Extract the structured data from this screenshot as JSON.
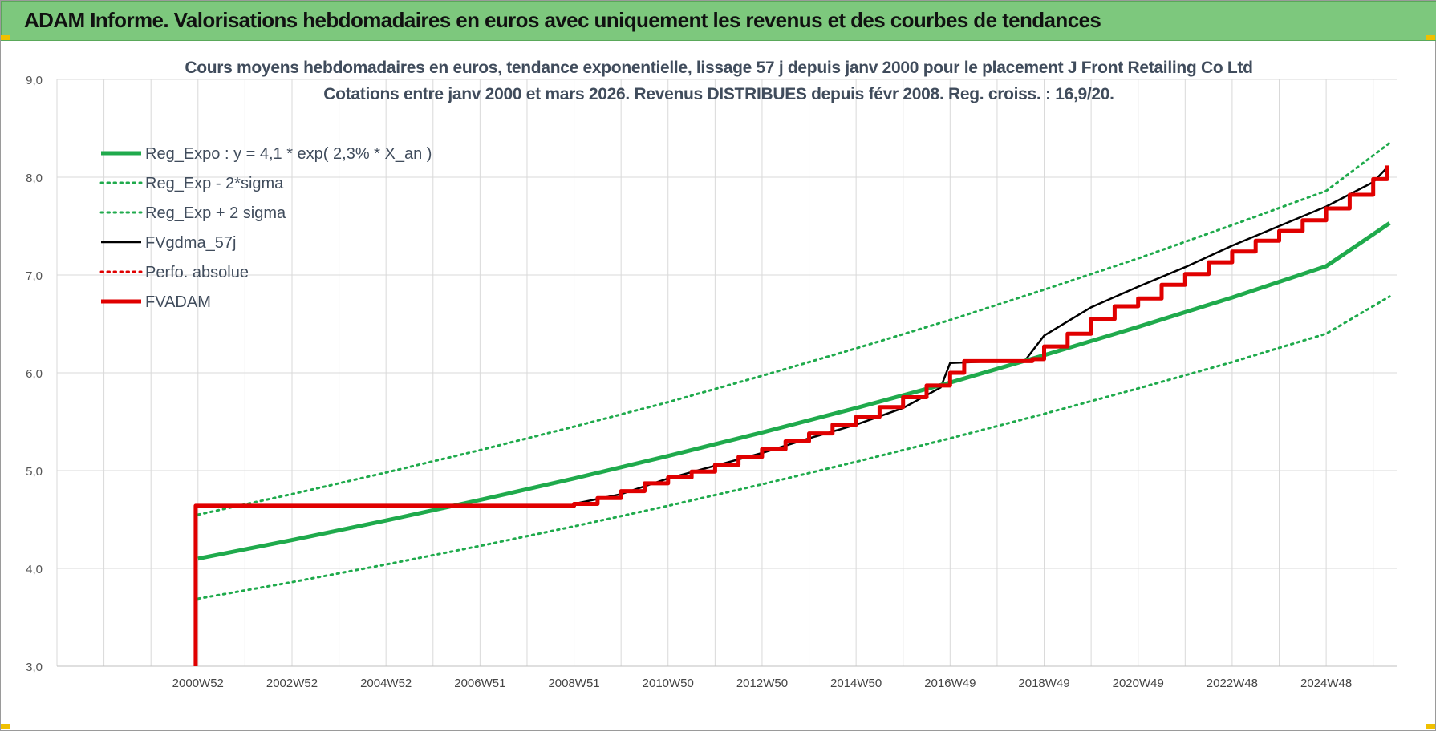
{
  "banner": {
    "title": "ADAM Informe. Valorisations hebdomadaires en euros avec uniquement les revenus et des courbes de tendances"
  },
  "colors": {
    "banner_bg": "#7dc87d",
    "reg_green": "#1faa4c",
    "fvadam_red": "#e00000",
    "fvgdma_black": "#000000",
    "grid": "#d9d9d9",
    "title_text": "#404c5c"
  },
  "chart_data": {
    "type": "line",
    "title": "Cours moyens hebdomadaires en euros, tendance exponentielle, lissage 57 j depuis janv 2000 pour le placement J Front Retailing Co Ltd",
    "subtitle": "Cotations entre janv 2000 et mars 2026. Revenus DISTRIBUES depuis févr 2008. Reg. croiss. : 16,9/20.",
    "xlabel": "",
    "ylabel": "",
    "ylim": [
      3.0,
      9.0
    ],
    "xlim": [
      1998.0,
      2026.5
    ],
    "yticks": [
      "3,0",
      "4,0",
      "5,0",
      "6,0",
      "7,0",
      "8,0",
      "9,0"
    ],
    "xticks": [
      {
        "x": 2001.0,
        "label": "2000W52"
      },
      {
        "x": 2003.0,
        "label": "2002W52"
      },
      {
        "x": 2005.0,
        "label": "2004W52"
      },
      {
        "x": 2007.0,
        "label": "2006W51"
      },
      {
        "x": 2009.0,
        "label": "2008W51"
      },
      {
        "x": 2011.0,
        "label": "2010W50"
      },
      {
        "x": 2013.0,
        "label": "2012W50"
      },
      {
        "x": 2015.0,
        "label": "2014W50"
      },
      {
        "x": 2017.0,
        "label": "2016W49"
      },
      {
        "x": 2019.0,
        "label": "2018W49"
      },
      {
        "x": 2021.0,
        "label": "2020W49"
      },
      {
        "x": 2023.0,
        "label": "2022W48"
      },
      {
        "x": 2025.0,
        "label": "2024W48"
      }
    ],
    "grid": true,
    "legend_position": "top-left",
    "series": [
      {
        "name": "Reg_Expo : y = 4,1 * exp( 2,3% *  X_an )",
        "style": "solid-thick",
        "color": "#1faa4c",
        "x": [
          2001.0,
          2003.0,
          2005.0,
          2007.0,
          2009.0,
          2011.0,
          2013.0,
          2015.0,
          2017.0,
          2019.0,
          2021.0,
          2023.0,
          2025.0,
          2026.35
        ],
        "y": [
          4.1,
          4.29,
          4.49,
          4.7,
          4.92,
          5.15,
          5.39,
          5.64,
          5.9,
          6.18,
          6.47,
          6.77,
          7.09,
          7.53
        ]
      },
      {
        "name": "Reg_Exp - 2*sigma",
        "style": "dotted",
        "color": "#1faa4c",
        "x": [
          2001.0,
          2003.0,
          2005.0,
          2007.0,
          2009.0,
          2011.0,
          2013.0,
          2015.0,
          2017.0,
          2019.0,
          2021.0,
          2023.0,
          2025.0,
          2026.35
        ],
        "y": [
          3.69,
          3.86,
          4.04,
          4.23,
          4.43,
          4.64,
          4.86,
          5.09,
          5.33,
          5.58,
          5.84,
          6.11,
          6.4,
          6.78
        ]
      },
      {
        "name": "Reg_Exp + 2 sigma",
        "style": "dotted",
        "color": "#1faa4c",
        "x": [
          2001.0,
          2003.0,
          2005.0,
          2007.0,
          2009.0,
          2011.0,
          2013.0,
          2015.0,
          2017.0,
          2019.0,
          2021.0,
          2023.0,
          2025.0,
          2026.35
        ],
        "y": [
          4.55,
          4.76,
          4.98,
          5.21,
          5.45,
          5.7,
          5.97,
          6.25,
          6.54,
          6.85,
          7.17,
          7.51,
          7.86,
          8.35
        ]
      },
      {
        "name": "FVgdma_57j",
        "style": "solid-thin",
        "color": "#000000",
        "x": [
          2009.0,
          2010.0,
          2011.0,
          2012.0,
          2013.0,
          2014.0,
          2015.0,
          2016.0,
          2016.8,
          2017.0,
          2018.6,
          2019.0,
          2020.0,
          2021.0,
          2022.0,
          2023.0,
          2024.0,
          2025.0,
          2026.0,
          2026.3
        ],
        "y": [
          4.66,
          4.76,
          4.92,
          5.05,
          5.18,
          5.33,
          5.47,
          5.64,
          5.85,
          6.1,
          6.13,
          6.38,
          6.67,
          6.88,
          7.08,
          7.3,
          7.5,
          7.7,
          7.95,
          8.1
        ]
      },
      {
        "name": "Perfo. absolue",
        "style": "dotted",
        "color": "#e00000",
        "x": [],
        "y": []
      },
      {
        "name": "FVADAM",
        "style": "solid-thick",
        "color": "#e00000",
        "steps": [
          [
            2000.95,
            3.0
          ],
          [
            2000.95,
            4.64
          ],
          [
            2008.9,
            4.64
          ],
          [
            2009.0,
            4.66
          ],
          [
            2009.5,
            4.72
          ],
          [
            2010.0,
            4.79
          ],
          [
            2010.5,
            4.87
          ],
          [
            2011.0,
            4.93
          ],
          [
            2011.5,
            4.99
          ],
          [
            2012.0,
            5.06
          ],
          [
            2012.5,
            5.14
          ],
          [
            2013.0,
            5.22
          ],
          [
            2013.5,
            5.3
          ],
          [
            2014.0,
            5.38
          ],
          [
            2014.5,
            5.47
          ],
          [
            2015.0,
            5.55
          ],
          [
            2015.5,
            5.65
          ],
          [
            2016.0,
            5.75
          ],
          [
            2016.5,
            5.87
          ],
          [
            2017.0,
            6.0
          ],
          [
            2017.3,
            6.12
          ],
          [
            2018.75,
            6.14
          ],
          [
            2019.0,
            6.27
          ],
          [
            2019.5,
            6.4
          ],
          [
            2020.0,
            6.55
          ],
          [
            2020.5,
            6.68
          ],
          [
            2021.0,
            6.76
          ],
          [
            2021.5,
            6.9
          ],
          [
            2022.0,
            7.01
          ],
          [
            2022.5,
            7.13
          ],
          [
            2023.0,
            7.24
          ],
          [
            2023.5,
            7.35
          ],
          [
            2024.0,
            7.45
          ],
          [
            2024.5,
            7.56
          ],
          [
            2025.0,
            7.68
          ],
          [
            2025.5,
            7.82
          ],
          [
            2026.0,
            7.98
          ],
          [
            2026.3,
            8.12
          ]
        ]
      }
    ]
  }
}
